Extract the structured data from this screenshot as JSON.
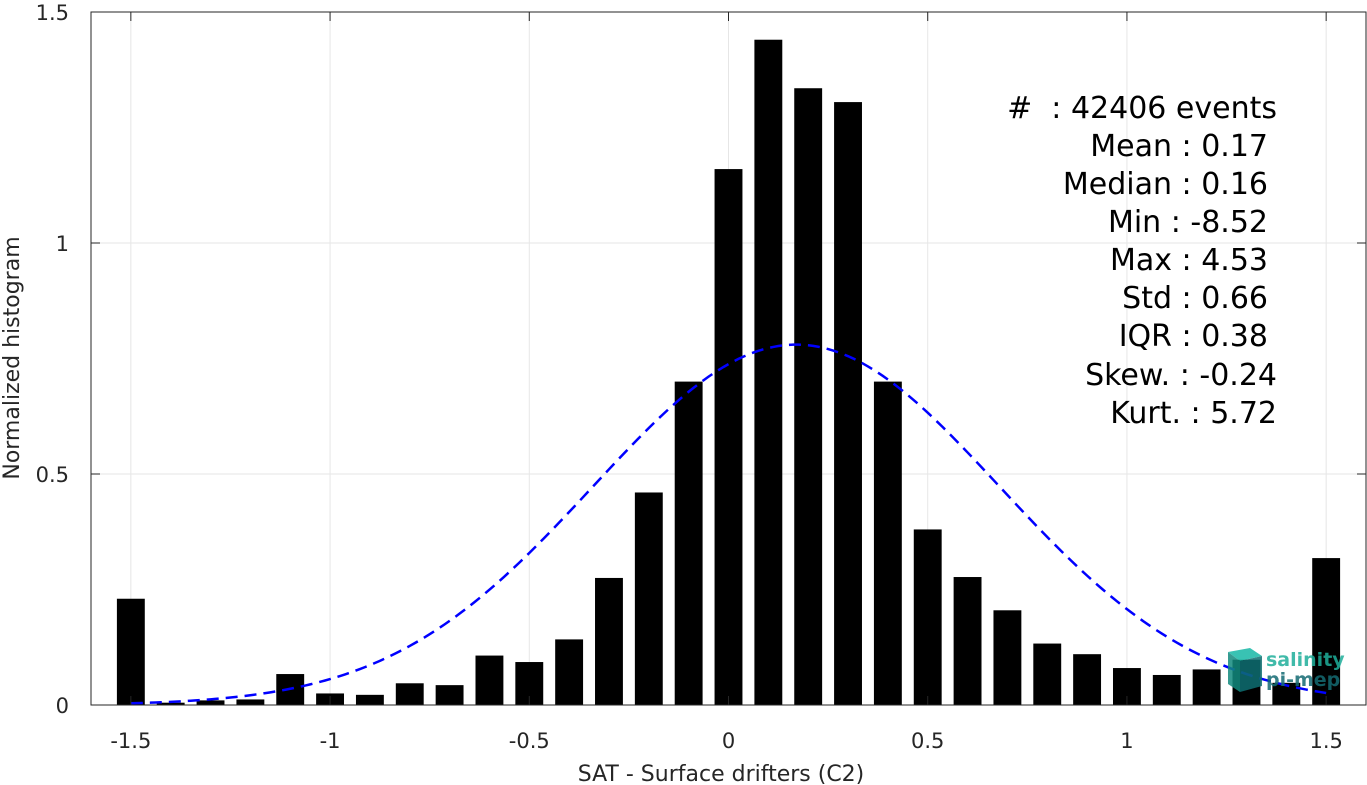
{
  "chart_data": {
    "type": "bar",
    "xlabel": "SAT - Surface drifters (C2)",
    "ylabel": "Normalized histogram",
    "xlim": [
      -1.6,
      1.6
    ],
    "ylim": [
      0,
      1.5
    ],
    "x_ticks": [
      -1.5,
      -1,
      -0.5,
      0,
      0.5,
      1,
      1.5
    ],
    "x_tick_labels": [
      "-1.5",
      "-1",
      "-0.5",
      "0",
      "0.5",
      "1",
      "1.5"
    ],
    "y_ticks": [
      0,
      0.5,
      1,
      1.5
    ],
    "y_tick_labels": [
      "0",
      "0.5",
      "1",
      "1.5"
    ],
    "grid": true,
    "bin_width": 0.1,
    "bar_width_fraction": 0.7,
    "bins": [
      {
        "x": -1.5,
        "value": 0.23
      },
      {
        "x": -1.4,
        "value": 0.005
      },
      {
        "x": -1.3,
        "value": 0.01
      },
      {
        "x": -1.2,
        "value": 0.012
      },
      {
        "x": -1.1,
        "value": 0.067
      },
      {
        "x": -1.0,
        "value": 0.025
      },
      {
        "x": -0.9,
        "value": 0.022
      },
      {
        "x": -0.8,
        "value": 0.047
      },
      {
        "x": -0.7,
        "value": 0.043
      },
      {
        "x": -0.6,
        "value": 0.107
      },
      {
        "x": -0.5,
        "value": 0.093
      },
      {
        "x": -0.4,
        "value": 0.142
      },
      {
        "x": -0.3,
        "value": 0.275
      },
      {
        "x": -0.2,
        "value": 0.46
      },
      {
        "x": -0.1,
        "value": 0.7
      },
      {
        "x": 0.0,
        "value": 1.16
      },
      {
        "x": 0.1,
        "value": 1.44
      },
      {
        "x": 0.2,
        "value": 1.335
      },
      {
        "x": 0.3,
        "value": 1.305
      },
      {
        "x": 0.4,
        "value": 0.7
      },
      {
        "x": 0.5,
        "value": 0.38
      },
      {
        "x": 0.6,
        "value": 0.277
      },
      {
        "x": 0.7,
        "value": 0.205
      },
      {
        "x": 0.8,
        "value": 0.133
      },
      {
        "x": 0.9,
        "value": 0.11
      },
      {
        "x": 1.0,
        "value": 0.08
      },
      {
        "x": 1.1,
        "value": 0.065
      },
      {
        "x": 1.2,
        "value": 0.077
      },
      {
        "x": 1.3,
        "value": 0.098
      },
      {
        "x": 1.4,
        "value": 0.048
      },
      {
        "x": 1.5,
        "value": 0.318
      }
    ],
    "gaussian_fit": {
      "mean": 0.17,
      "std": 0.51,
      "peak": 0.78,
      "x_range": [
        -1.5,
        1.5
      ],
      "color": "#0000ff",
      "style": "dashed"
    },
    "bar_color": "#000000",
    "stats_lines": [
      "#  : 42406 events",
      "Mean : 0.17",
      "Median : 0.16",
      "Min : -8.52",
      "Max : 4.53",
      "Std : 0.66",
      "IQR : 0.38",
      "Skew. : -0.24",
      "Kurt. : 5.72"
    ]
  },
  "logo": {
    "line1": "salinity",
    "line2": "pi-mep",
    "color": "#1fae9b"
  }
}
